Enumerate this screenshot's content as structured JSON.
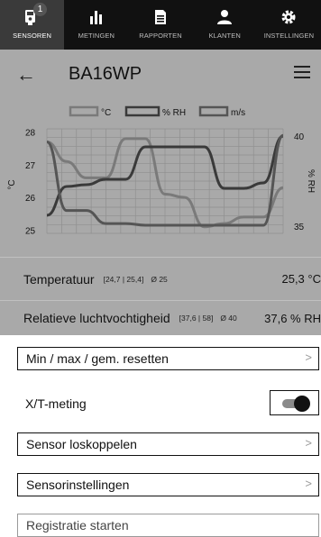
{
  "nav": {
    "items": [
      {
        "label": "SENSOREN",
        "icon": "sensor-icon",
        "badge": "1",
        "active": true
      },
      {
        "label": "METINGEN",
        "icon": "bar-chart-icon",
        "active": false
      },
      {
        "label": "RAPPORTEN",
        "icon": "report-icon",
        "active": false
      },
      {
        "label": "KLANTEN",
        "icon": "customers-icon",
        "active": false
      },
      {
        "label": "INSTELLINGEN",
        "icon": "gear-icon",
        "active": false
      }
    ]
  },
  "header": {
    "title": "BA16WP",
    "back_icon": "back-arrow-icon",
    "menu_icon": "hamburger-menu-icon"
  },
  "chart_data": {
    "type": "line",
    "legend": [
      "°C",
      "% RH",
      "m/s"
    ],
    "legend_placement": "top",
    "ylabel_left": "°C",
    "ylabel_right": "% RH",
    "y_left_ticks": [
      "28",
      "27",
      "26",
      "25"
    ],
    "y_right_ticks": [
      "40",
      "35"
    ],
    "ylim_left": [
      24.9,
      28.1
    ],
    "ylim_right": [
      34.6,
      40.4
    ],
    "grid": true,
    "series": [
      {
        "name": "°C",
        "axis": "left",
        "color": "#7a7a7a",
        "values": [
          27.7,
          27.1,
          26.6,
          26.6,
          27.8,
          27.8,
          26.1,
          26.0,
          25.1,
          25.2,
          25.4,
          25.4,
          26.3
        ]
      },
      {
        "name": "% RH",
        "axis": "right",
        "color": "#3a3a3a",
        "values": [
          35.6,
          37.2,
          37.3,
          37.6,
          37.6,
          39.4,
          39.4,
          39.4,
          39.4,
          37.1,
          37.1,
          37.4,
          40.0
        ]
      },
      {
        "name": "m/s",
        "axis": "left",
        "color": "#555555",
        "values": [
          27.7,
          25.6,
          25.6,
          25.2,
          25.2,
          25.15,
          25.15,
          25.15,
          25.15,
          25.15,
          25.15,
          25.15,
          27.9
        ]
      }
    ]
  },
  "readings": {
    "temperature": {
      "label": "Temperatuur",
      "range": "[24,7 | 25,4]",
      "avg": "Ø 25",
      "value": "25,3 °C"
    },
    "humidity": {
      "label": "Relatieve luchtvochtigheid",
      "range": "[37,6 | 58]",
      "avg": "Ø 40",
      "value": "37,6 % RH"
    }
  },
  "actions": {
    "reset": "Min / max / gem. resetten",
    "xt_label": "X/T-meting",
    "xt_toggle": "on",
    "disconnect": "Sensor loskoppelen",
    "settings": "Sensorinstellingen",
    "start": "Registratie starten",
    "chevron": ">"
  }
}
